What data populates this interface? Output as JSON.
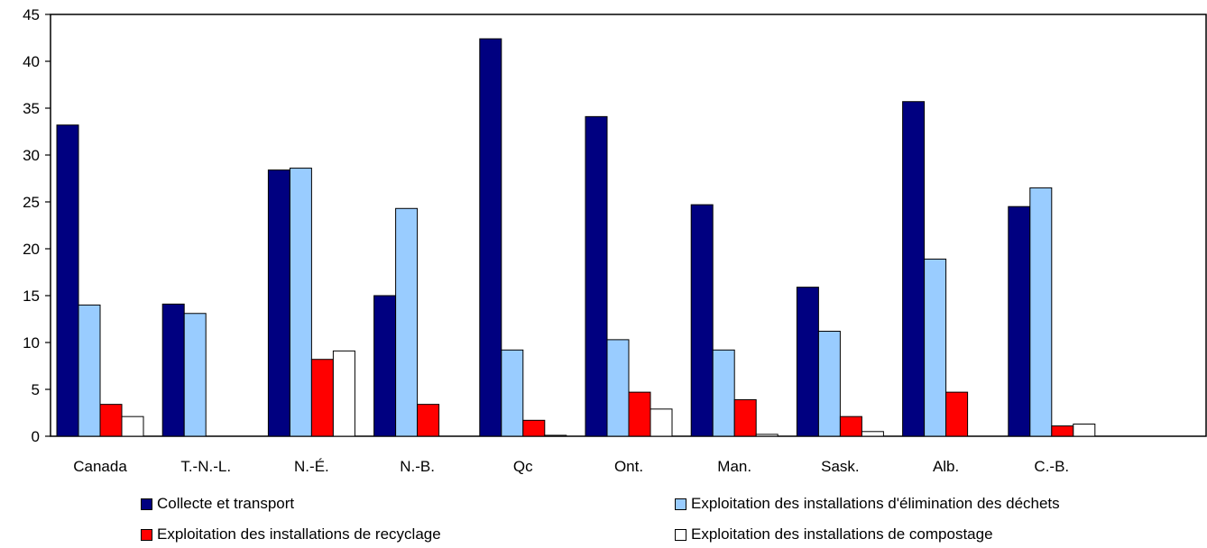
{
  "chart_data": {
    "type": "bar",
    "categories": [
      "Canada",
      "T.-N.-L.",
      "N.-É.",
      "N.-B.",
      "Qc",
      "Ont.",
      "Man.",
      "Sask.",
      "Alb.",
      "C.-B."
    ],
    "ylim": [
      0,
      45
    ],
    "yticks": [
      0,
      5,
      10,
      15,
      20,
      25,
      30,
      35,
      40,
      45
    ],
    "grid": false,
    "legend_position": "bottom",
    "series": [
      {
        "name": "Collecte et transport",
        "color": "#000080",
        "values": [
          33.2,
          14.1,
          28.4,
          15.0,
          42.4,
          34.1,
          24.7,
          15.9,
          35.7,
          24.5
        ]
      },
      {
        "name": "Exploitation des installations d'élimination des déchets",
        "color": "#99CCFF",
        "values": [
          14.0,
          13.1,
          28.6,
          24.3,
          9.2,
          10.3,
          9.2,
          11.2,
          18.9,
          26.5
        ]
      },
      {
        "name": "Exploitation des installations de recyclage",
        "color": "#FF0000",
        "values": [
          3.4,
          0,
          8.2,
          3.4,
          1.7,
          4.7,
          3.9,
          2.1,
          4.7,
          1.1
        ]
      },
      {
        "name": "Exploitation des installations de compostage",
        "color": "#FFFFFF",
        "values": [
          2.1,
          0,
          9.1,
          0,
          0.1,
          2.9,
          0.2,
          0.5,
          0,
          1.3
        ]
      }
    ]
  }
}
